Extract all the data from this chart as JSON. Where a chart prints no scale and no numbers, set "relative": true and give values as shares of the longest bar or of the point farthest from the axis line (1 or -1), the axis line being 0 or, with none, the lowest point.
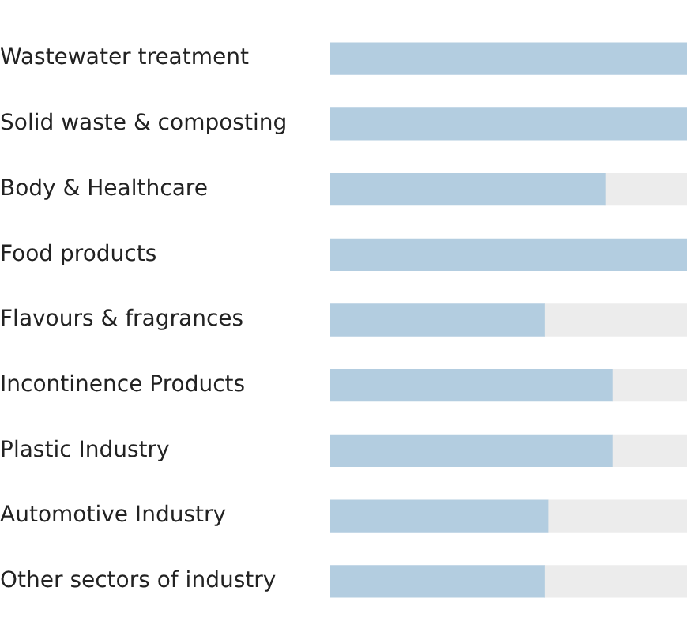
{
  "chart_data": {
    "type": "bar",
    "orientation": "horizontal",
    "relative": true,
    "stacked": true,
    "legend": false,
    "categories": [
      "Wastewater treatment",
      "Solid waste & composting",
      "Body & Healthcare",
      "Food products",
      "Flavours & fragrances",
      "Incontinence Products",
      "Plastic Industry",
      "Automotive Industry",
      "Other sectors of industry"
    ],
    "series": [
      {
        "color": "#b3cde0",
        "values": [
          1,
          1,
          0.77,
          1,
          0.6,
          0.79,
          0.79,
          0.61,
          0.6
        ]
      },
      {
        "color": "#ececec",
        "values": [
          0,
          0,
          0.23,
          0,
          0.4,
          0.21,
          0.21,
          0.39,
          0.4
        ]
      }
    ]
  }
}
